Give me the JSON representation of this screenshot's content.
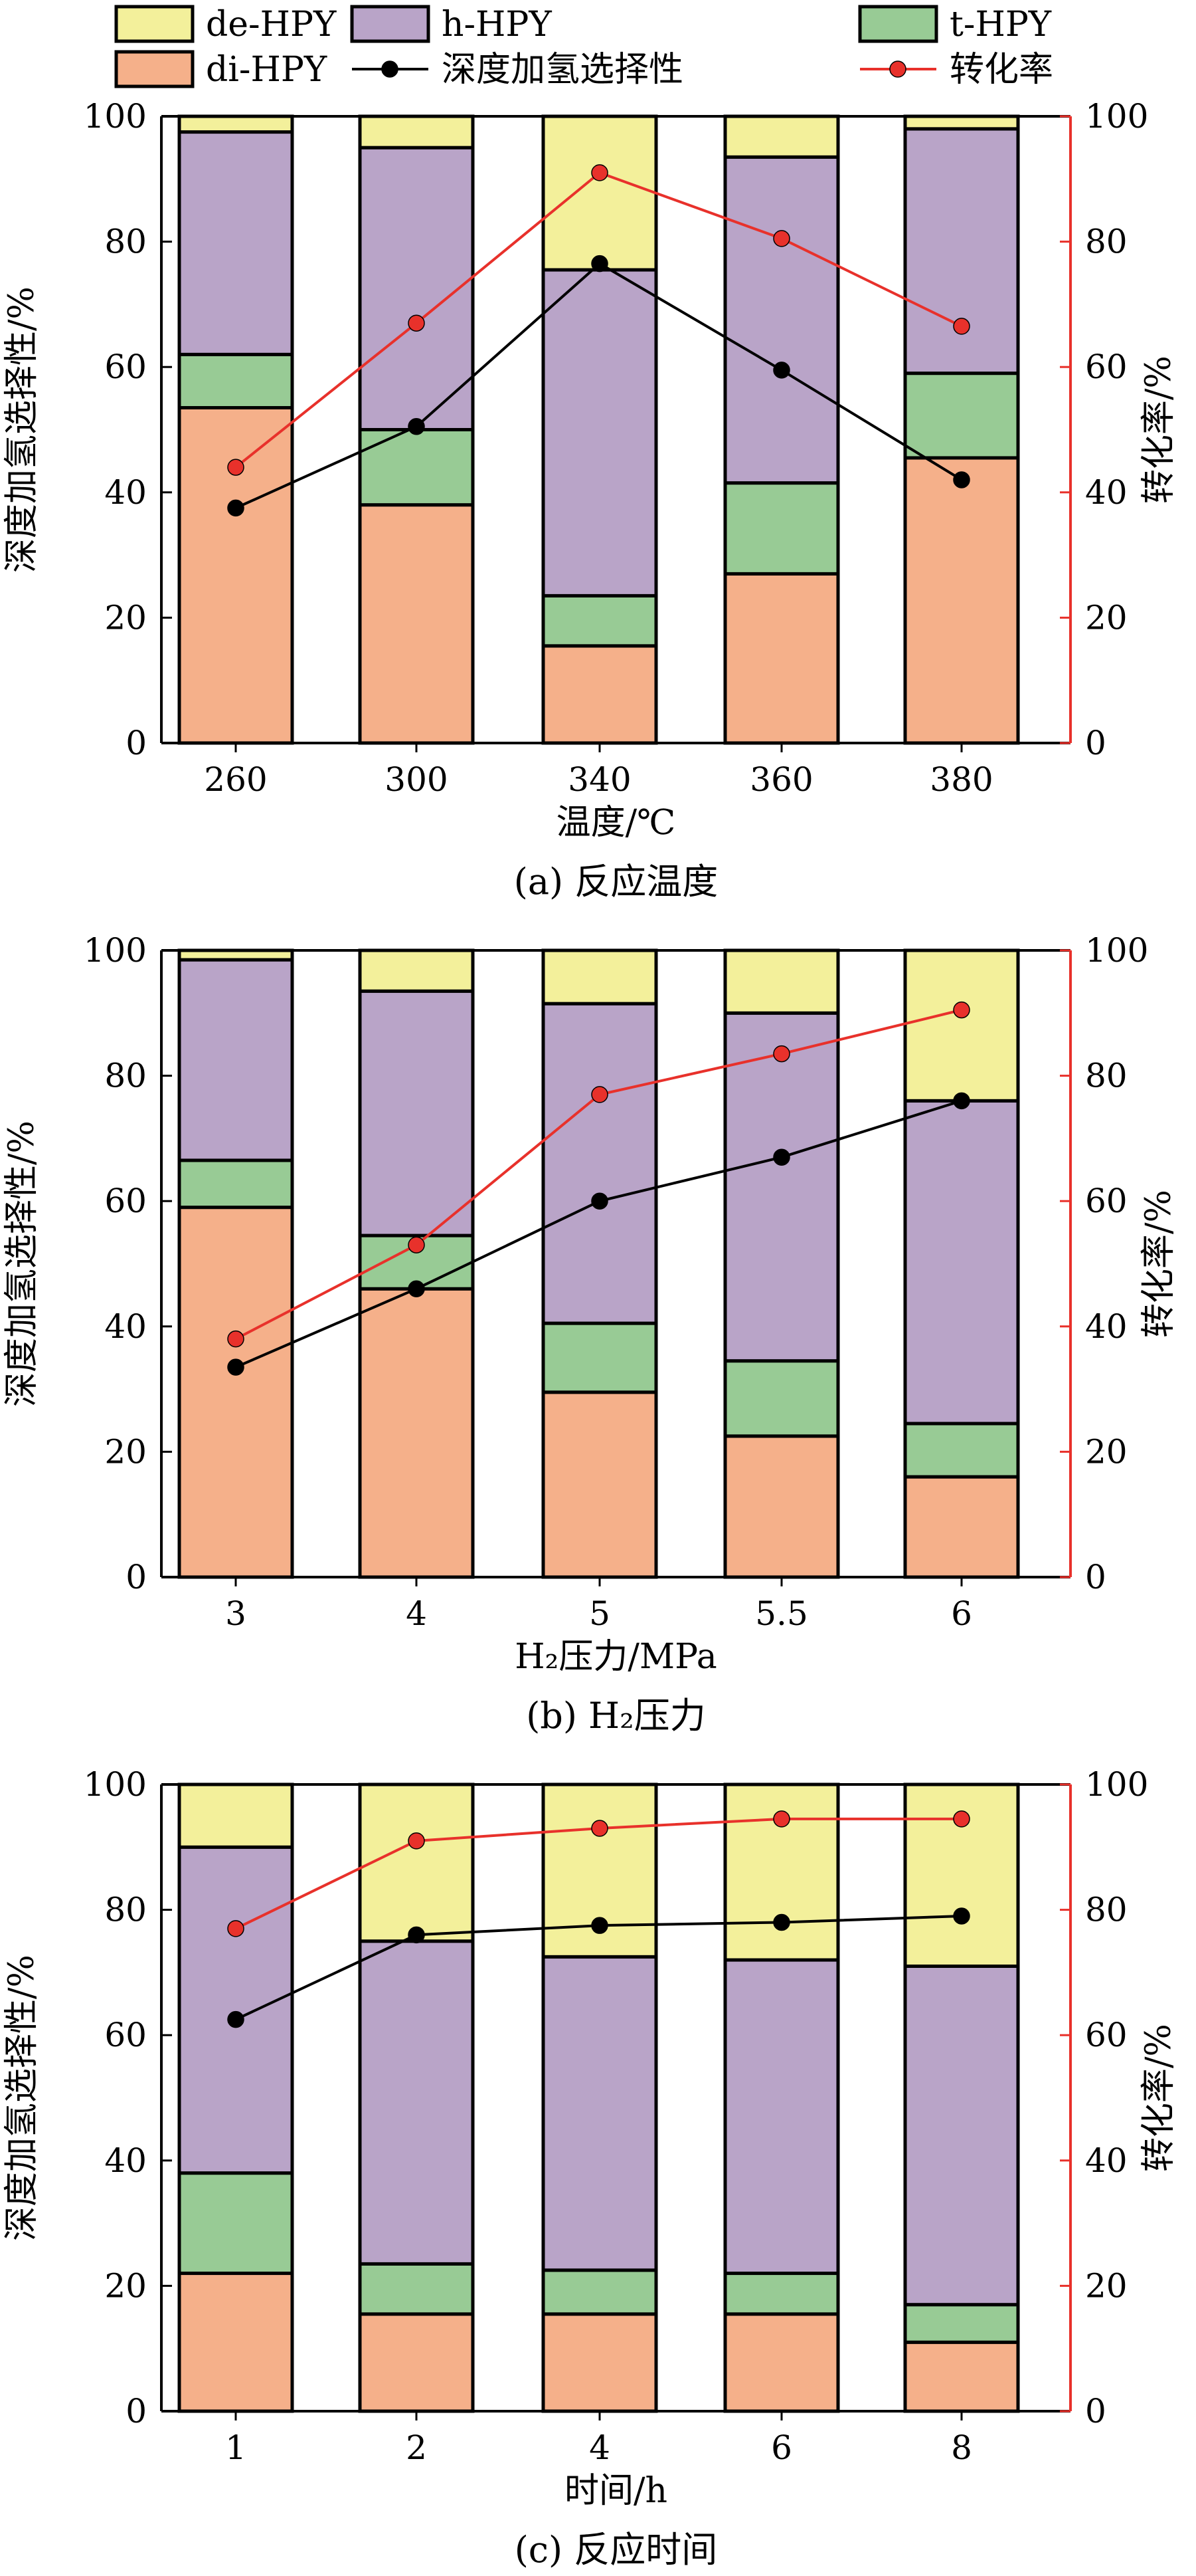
{
  "legend": [
    {
      "key": "de",
      "label": "de-HPY",
      "kind": "box"
    },
    {
      "key": "h",
      "label": "h-HPY",
      "kind": "box"
    },
    {
      "key": "t",
      "label": "t-HPY",
      "kind": "box"
    },
    {
      "key": "di",
      "label": "di-HPY",
      "kind": "box"
    },
    {
      "key": "sel",
      "label": "深度加氢选择性",
      "kind": "line"
    },
    {
      "key": "conv",
      "label": "转化率",
      "kind": "line"
    }
  ],
  "colors": {
    "di": "#f5b08a",
    "t": "#98cb95",
    "h": "#b9a4c8",
    "de": "#f3f09b",
    "sel": "#000000",
    "conv": "#e8312b",
    "right_axis": "#e8312b"
  },
  "chart_data": [
    {
      "type": "bar",
      "stacked": true,
      "caption": "(a) 反应温度",
      "xlabel": "温度/℃",
      "ylabel": "深度加氢选择性/%",
      "y2label": "转化率/%",
      "ylim": [
        0,
        100
      ],
      "y2lim": [
        0,
        100
      ],
      "yticks": [
        "0",
        "20",
        "40",
        "60",
        "80",
        "100"
      ],
      "categories": [
        "260",
        "300",
        "340",
        "360",
        "380"
      ],
      "series": [
        {
          "key": "di",
          "name": "di-HPY",
          "values": [
            53.5,
            38,
            15.5,
            27,
            45.5
          ]
        },
        {
          "key": "t",
          "name": "t-HPY",
          "values": [
            8.5,
            12,
            8,
            14.5,
            13.5
          ]
        },
        {
          "key": "h",
          "name": "h-HPY",
          "values": [
            35.5,
            45,
            52,
            52,
            39
          ]
        },
        {
          "key": "de",
          "name": "de-HPY",
          "values": [
            2.5,
            5,
            24.5,
            6.5,
            2
          ]
        }
      ],
      "lines": [
        {
          "key": "sel",
          "name": "深度加氢选择性",
          "axis": "left",
          "values": [
            37.5,
            50.5,
            76.5,
            59.5,
            42
          ]
        },
        {
          "key": "conv",
          "name": "转化率",
          "axis": "right",
          "values": [
            44,
            67,
            91,
            80.5,
            66.5
          ]
        }
      ]
    },
    {
      "type": "bar",
      "stacked": true,
      "caption": "(b) H₂压力",
      "xlabel": "H₂压力/MPa",
      "ylabel": "深度加氢选择性/%",
      "y2label": "转化率/%",
      "ylim": [
        0,
        100
      ],
      "y2lim": [
        0,
        100
      ],
      "yticks": [
        "0",
        "20",
        "40",
        "60",
        "80",
        "100"
      ],
      "categories": [
        "3",
        "4",
        "5",
        "5.5",
        "6"
      ],
      "series": [
        {
          "key": "di",
          "name": "di-HPY",
          "values": [
            59,
            46,
            29.5,
            22.5,
            16
          ]
        },
        {
          "key": "t",
          "name": "t-HPY",
          "values": [
            7.5,
            8.5,
            11,
            12,
            8.5
          ]
        },
        {
          "key": "h",
          "name": "h-HPY",
          "values": [
            32,
            39,
            51,
            55.5,
            51.5
          ]
        },
        {
          "key": "de",
          "name": "de-HPY",
          "values": [
            1.5,
            6.5,
            8.5,
            10,
            24
          ]
        }
      ],
      "lines": [
        {
          "key": "sel",
          "name": "深度加氢选择性",
          "axis": "left",
          "values": [
            33.5,
            46,
            60,
            67,
            76
          ]
        },
        {
          "key": "conv",
          "name": "转化率",
          "axis": "right",
          "values": [
            38,
            53,
            77,
            83.5,
            90.5
          ]
        }
      ]
    },
    {
      "type": "bar",
      "stacked": true,
      "caption": "(c) 反应时间",
      "xlabel": "时间/h",
      "ylabel": "深度加氢选择性/%",
      "y2label": "转化率/%",
      "ylim": [
        0,
        100
      ],
      "y2lim": [
        0,
        100
      ],
      "yticks": [
        "0",
        "20",
        "40",
        "60",
        "80",
        "100"
      ],
      "categories": [
        "1",
        "2",
        "4",
        "6",
        "8"
      ],
      "series": [
        {
          "key": "di",
          "name": "di-HPY",
          "values": [
            22,
            15.5,
            15.5,
            15.5,
            11
          ]
        },
        {
          "key": "t",
          "name": "t-HPY",
          "values": [
            16,
            8,
            7,
            6.5,
            6
          ]
        },
        {
          "key": "h",
          "name": "h-HPY",
          "values": [
            52,
            51.5,
            50,
            50,
            54
          ]
        },
        {
          "key": "de",
          "name": "de-HPY",
          "values": [
            10,
            25,
            27.5,
            28,
            29
          ]
        }
      ],
      "lines": [
        {
          "key": "sel",
          "name": "深度加氢选择性",
          "axis": "left",
          "values": [
            62.5,
            76,
            77.5,
            78,
            79
          ]
        },
        {
          "key": "conv",
          "name": "转化率",
          "axis": "right",
          "values": [
            77,
            91,
            93,
            94.5,
            94.5
          ]
        }
      ]
    }
  ]
}
